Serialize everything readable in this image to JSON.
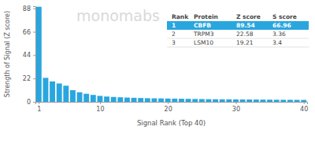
{
  "chart_data": {
    "type": "bar",
    "x_label": "Signal Rank (Top 40)",
    "y_label": "Strength of Signal (Z score)",
    "annotations": [
      "monomabs"
    ],
    "x": [
      1,
      2,
      3,
      4,
      5,
      6,
      7,
      8,
      9,
      10,
      11,
      12,
      13,
      14,
      15,
      16,
      17,
      18,
      19,
      20,
      21,
      22,
      23,
      24,
      25,
      26,
      27,
      28,
      29,
      30,
      31,
      32,
      33,
      34,
      35,
      36,
      37,
      38,
      39,
      40
    ],
    "values": [
      89.54,
      22.58,
      19.21,
      17.3,
      15.2,
      11.0,
      9.0,
      7.6,
      6.5,
      5.6,
      5.0,
      4.6,
      4.3,
      4.0,
      3.8,
      3.6,
      3.4,
      3.3,
      3.2,
      3.1,
      3.0,
      2.9,
      2.8,
      2.7,
      2.6,
      2.5,
      2.45,
      2.4,
      2.35,
      2.3,
      2.25,
      2.2,
      2.15,
      2.1,
      2.05,
      2.0,
      1.95,
      1.9,
      1.85,
      1.8
    ],
    "color": "#2aa6df",
    "xlim": [
      0.5,
      40.5
    ],
    "xticks": [
      1,
      10,
      20,
      30,
      40
    ],
    "ylim": [
      0,
      90
    ],
    "yticks": [
      0,
      22,
      44,
      66,
      88
    ],
    "grid": false,
    "table": {
      "columns": [
        "Rank",
        "Protein",
        "Z score",
        "S score"
      ],
      "rows": [
        [
          1,
          "CBFB",
          89.54,
          66.96
        ],
        [
          2,
          "TRPM3",
          22.58,
          3.36
        ],
        [
          3,
          "LSM10",
          19.21,
          3.4
        ]
      ]
    }
  }
}
